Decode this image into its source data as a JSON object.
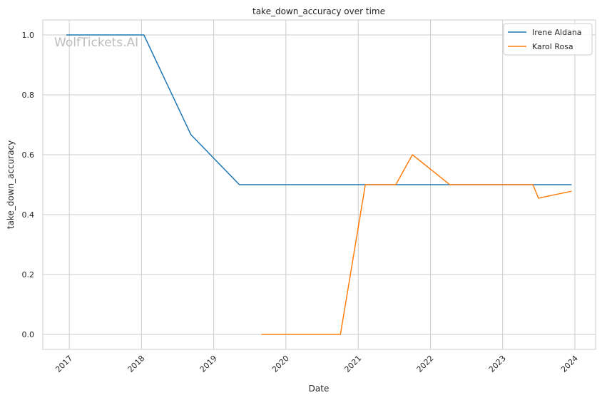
{
  "chart_data": {
    "type": "line",
    "title": "take_down_accuracy over time",
    "xlabel": "Date",
    "ylabel": "take_down_accuracy",
    "watermark": "WolfTickets.AI",
    "x_ticks": [
      "2017",
      "2018",
      "2019",
      "2020",
      "2021",
      "2022",
      "2023",
      "2024"
    ],
    "y_ticks": [
      "0.0",
      "0.2",
      "0.4",
      "0.6",
      "0.8",
      "1.0"
    ],
    "xlim": [
      "2016-08-20",
      "2024-04-15"
    ],
    "ylim": [
      -0.05,
      1.05
    ],
    "grid": true,
    "legend_position": "top-right",
    "series": [
      {
        "name": "Irene Aldana",
        "color": "#1f77b4",
        "points": [
          {
            "x": "2016-12-17",
            "y": 1.0
          },
          {
            "x": "2018-01-13",
            "y": 1.0
          },
          {
            "x": "2018-09-08",
            "y": 0.667
          },
          {
            "x": "2019-05-11",
            "y": 0.5
          },
          {
            "x": "2023-12-16",
            "y": 0.5
          }
        ]
      },
      {
        "name": "Karol Rosa",
        "color": "#ff7f0e",
        "points": [
          {
            "x": "2019-08-31",
            "y": 0.0
          },
          {
            "x": "2020-10-03",
            "y": 0.0
          },
          {
            "x": "2021-02-06",
            "y": 0.5
          },
          {
            "x": "2021-07-10",
            "y": 0.5
          },
          {
            "x": "2021-10-02",
            "y": 0.6
          },
          {
            "x": "2022-04-09",
            "y": 0.5
          },
          {
            "x": "2023-06-03",
            "y": 0.5
          },
          {
            "x": "2023-07-01",
            "y": 0.455
          },
          {
            "x": "2023-12-16",
            "y": 0.478
          }
        ]
      }
    ]
  }
}
